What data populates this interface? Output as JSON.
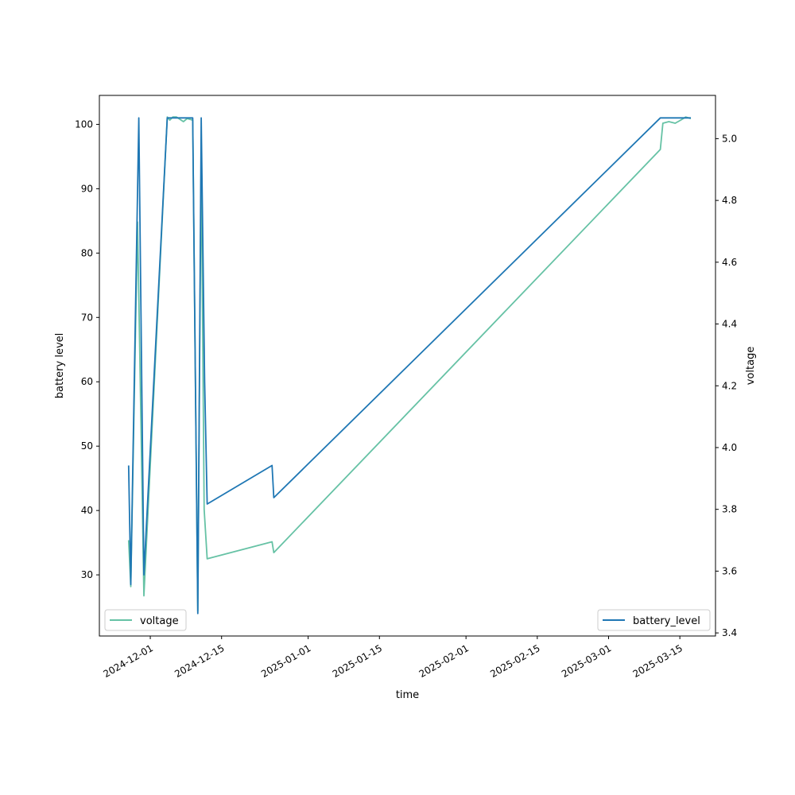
{
  "chart_data": {
    "type": "line",
    "xlabel": "time",
    "ylabel_left": "battery level",
    "ylabel_right": "voltage",
    "ylim_left": [
      20.5,
      104.5
    ],
    "ylim_right": [
      3.39,
      5.14
    ],
    "xlim": [
      "2024-11-21T00:00",
      "2025-03-22T00:00"
    ],
    "x_ticks": [
      "2024-12-01",
      "2024-12-15",
      "2025-01-01",
      "2025-01-15",
      "2025-02-01",
      "2025-02-15",
      "2025-03-01",
      "2025-03-15"
    ],
    "y_ticks_left": [
      30,
      40,
      50,
      60,
      70,
      80,
      90,
      100
    ],
    "y_ticks_right": [
      "3.4",
      "3.6",
      "3.8",
      "4.0",
      "4.2",
      "4.4",
      "4.6",
      "4.8",
      "5.0"
    ],
    "grid": false,
    "series": [
      {
        "name": "battery_level",
        "axis": "left",
        "color": "#1f77b4",
        "legend_position": "lower-right",
        "points": [
          [
            "2024-11-26T18:00",
            47
          ],
          [
            "2024-11-27T04:00",
            28.5
          ],
          [
            "2024-11-28T18:00",
            101
          ],
          [
            "2024-11-29T18:00",
            30
          ],
          [
            "2024-12-04T08:00",
            101
          ],
          [
            "2024-12-09T08:00",
            101
          ],
          [
            "2024-12-10T08:00",
            24
          ],
          [
            "2024-12-11T00:00",
            101
          ],
          [
            "2024-12-11T16:00",
            60
          ],
          [
            "2024-12-12T04:00",
            41
          ],
          [
            "2024-12-24T22:00",
            47
          ],
          [
            "2024-12-25T06:00",
            42
          ],
          [
            "2025-03-11T04:00",
            101
          ],
          [
            "2025-03-17T04:00",
            101
          ]
        ]
      },
      {
        "name": "voltage",
        "axis": "right",
        "color": "#66c2a5",
        "legend_position": "lower-left",
        "points": [
          [
            "2024-11-26T18:00",
            3.7
          ],
          [
            "2024-11-27T04:00",
            3.55
          ],
          [
            "2024-11-28T12:00",
            4.73
          ],
          [
            "2024-11-29T18:00",
            3.52
          ],
          [
            "2024-12-04T08:00",
            5.07
          ],
          [
            "2024-12-04T20:00",
            5.06
          ],
          [
            "2024-12-05T10:00",
            5.07
          ],
          [
            "2024-12-06T04:00",
            5.07
          ],
          [
            "2024-12-07T12:00",
            5.055
          ],
          [
            "2024-12-08T06:00",
            5.065
          ],
          [
            "2024-12-09T08:00",
            5.06
          ],
          [
            "2024-12-10T08:00",
            3.47
          ],
          [
            "2024-12-11T00:00",
            4.95
          ],
          [
            "2024-12-11T14:00",
            3.8
          ],
          [
            "2024-12-12T04:00",
            3.64
          ],
          [
            "2024-12-24T22:00",
            3.695
          ],
          [
            "2024-12-25T06:00",
            3.66
          ],
          [
            "2025-03-11T04:00",
            4.965
          ],
          [
            "2025-03-11T16:00",
            5.05
          ],
          [
            "2025-03-12T20:00",
            5.055
          ],
          [
            "2025-03-14T02:00",
            5.05
          ],
          [
            "2025-03-15T04:00",
            5.06
          ],
          [
            "2025-03-16T04:00",
            5.07
          ],
          [
            "2025-03-17T04:00",
            5.065
          ]
        ]
      }
    ]
  }
}
